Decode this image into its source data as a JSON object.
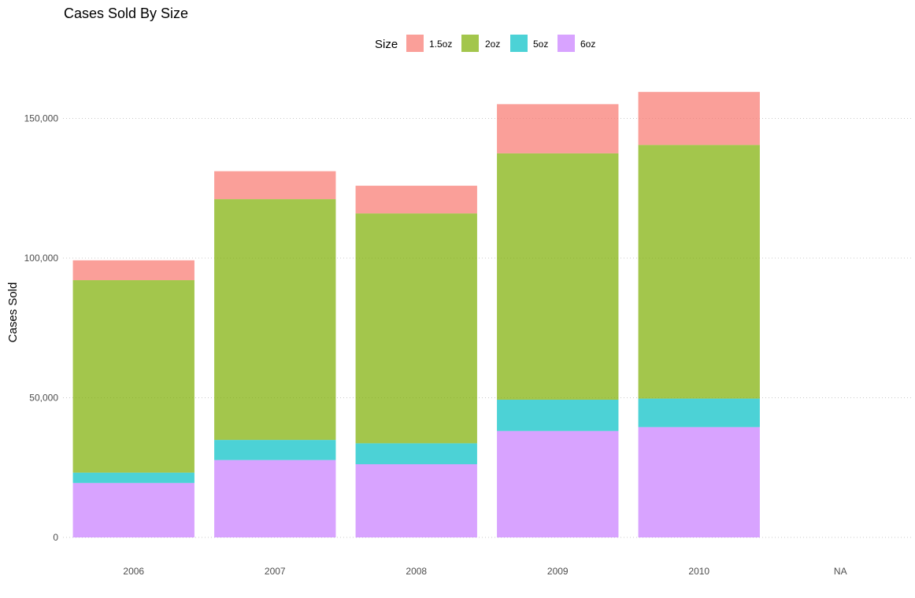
{
  "chart_data": {
    "type": "bar",
    "stacked": true,
    "title": "Cases Sold By Size",
    "xlabel": "",
    "ylabel": "Cases Sold",
    "categories": [
      "2006",
      "2007",
      "2008",
      "2009",
      "2010",
      "NA"
    ],
    "series": [
      {
        "name": "6oz",
        "color": "#C77CFF",
        "values": [
          19500,
          27700,
          26200,
          38100,
          39500,
          0
        ]
      },
      {
        "name": "5oz",
        "color": "#00BFC4",
        "values": [
          3700,
          7200,
          7500,
          11200,
          10200,
          0
        ]
      },
      {
        "name": "2oz",
        "color": "#7CAE00",
        "values": [
          68900,
          86200,
          82300,
          88200,
          90800,
          0
        ]
      },
      {
        "name": "1.5oz",
        "color": "#F8766D",
        "values": [
          7100,
          10000,
          9900,
          17600,
          19000,
          0
        ]
      }
    ],
    "legend": {
      "title": "Size",
      "position": "top",
      "entries": [
        "1.5oz",
        "2oz",
        "5oz",
        "6oz"
      ]
    },
    "ylim": [
      0,
      160000
    ],
    "yticks": [
      {
        "value": 0,
        "label": "0"
      },
      {
        "value": 50000,
        "label": "50,000"
      },
      {
        "value": 100000,
        "label": "100,000"
      },
      {
        "value": 150000,
        "label": "150,000"
      }
    ],
    "grid": "horizontal dotted",
    "bar_opacity": 0.7
  }
}
